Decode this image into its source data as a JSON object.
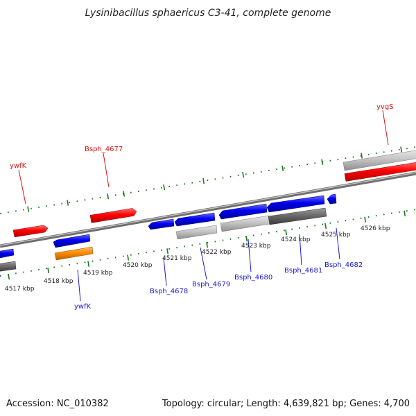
{
  "title": "Lysinibacillus sphaericus C3-41, complete genome",
  "footer": {
    "accession": "Accession: NC_010382",
    "topology": "Topology: circular; Length: 4,639,821 bp; Genes: 4,700"
  },
  "colors": {
    "forward_gene": "#ff0000",
    "reverse_gene": "#0000ee",
    "rna_gene": "#ff8c00",
    "region_light": "#c0c0c0",
    "region_dark": "#6a6a6a",
    "backbone": "#8c8c8c",
    "tick": "#1a7a1a"
  },
  "kbp_labels": [
    {
      "id": "4517",
      "text": "4517 kbp"
    },
    {
      "id": "4518",
      "text": "4518 kbp"
    },
    {
      "id": "4519",
      "text": "4519 kbp"
    },
    {
      "id": "4520",
      "text": "4520 kbp"
    },
    {
      "id": "4521",
      "text": "4521 kbp"
    },
    {
      "id": "4522",
      "text": "4522 kbp"
    },
    {
      "id": "4523",
      "text": "4523 kbp"
    },
    {
      "id": "4524",
      "text": "4524 kbp"
    },
    {
      "id": "4525",
      "text": "4525 kbp"
    },
    {
      "id": "4526",
      "text": "4526 kbp"
    }
  ],
  "gene_labels_top": [
    {
      "id": "ywfK-top",
      "text": "ywfK"
    },
    {
      "id": "bsph-4677",
      "text": "Bsph_4677"
    },
    {
      "id": "yvgS",
      "text": "yvgS"
    }
  ],
  "gene_labels_bottom": [
    {
      "id": "ywfK-bottom",
      "text": "ywfK"
    },
    {
      "id": "bsph-4678",
      "text": "Bsph_4678"
    },
    {
      "id": "bsph-4679",
      "text": "Bsph_4679"
    },
    {
      "id": "bsph-4680",
      "text": "Bsph_4680"
    },
    {
      "id": "bsph-4681",
      "text": "Bsph_4681"
    },
    {
      "id": "bsph-4682",
      "text": "Bsph_4682"
    }
  ]
}
